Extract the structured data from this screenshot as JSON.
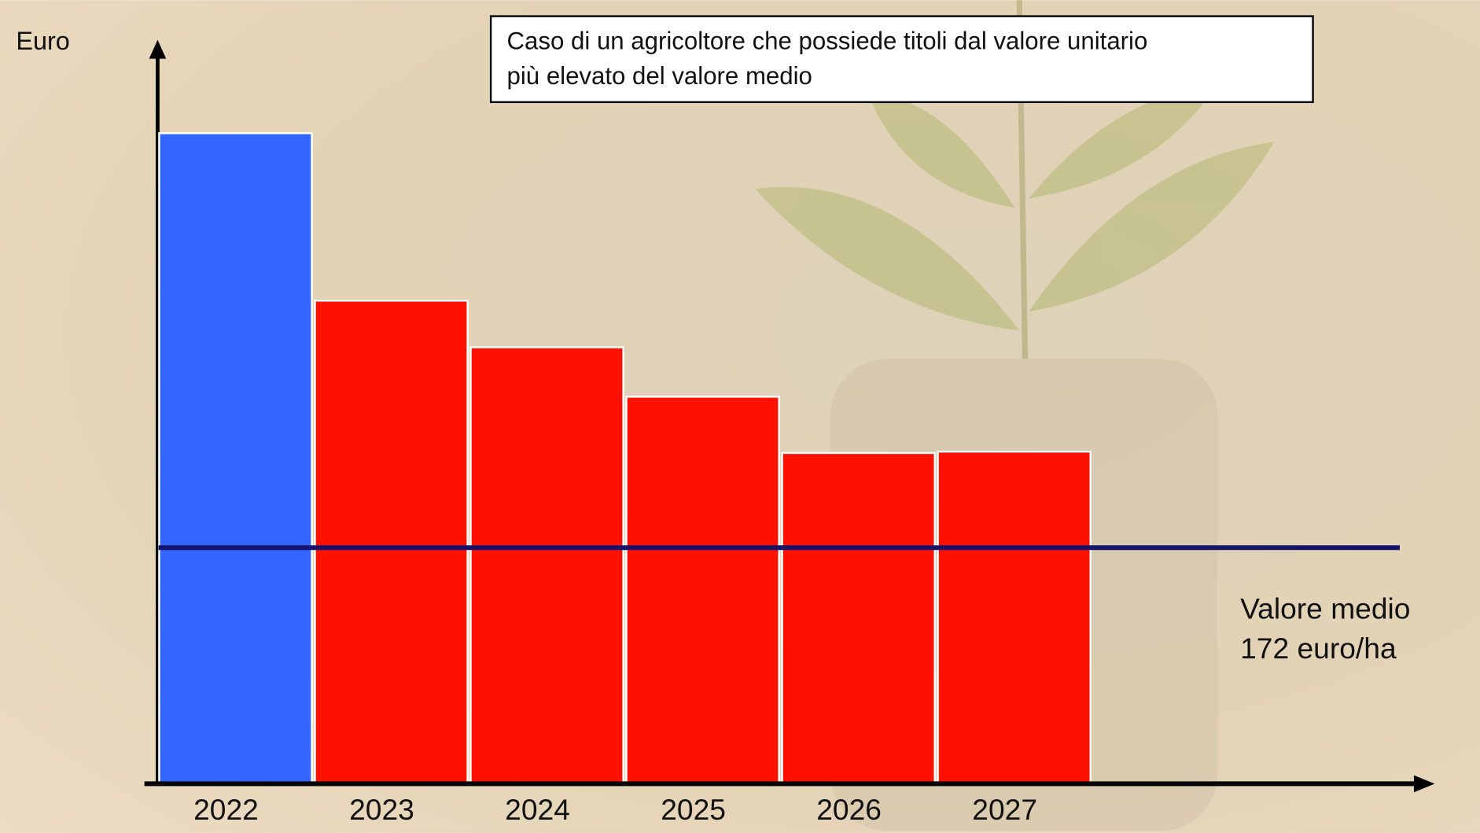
{
  "chart_data": {
    "type": "bar",
    "y_label": "Euro",
    "annotation": [
      "Caso di un agricoltore che possiede titoli dal valore unitario",
      "più elevato del valore medio"
    ],
    "categories": [
      "2022",
      "2023",
      "2024",
      "2025",
      "2026",
      "2027"
    ],
    "values": [
      474,
      352,
      318,
      282,
      241,
      242
    ],
    "colors": [
      "#3366ff",
      "#ff1100",
      "#ff1100",
      "#ff1100",
      "#ff1100",
      "#ff1100"
    ],
    "ylim": [
      0,
      540
    ],
    "reference_line": {
      "value": 172,
      "label": [
        "Valore medio",
        "172 euro/ha"
      ],
      "color": "#14146e"
    }
  }
}
